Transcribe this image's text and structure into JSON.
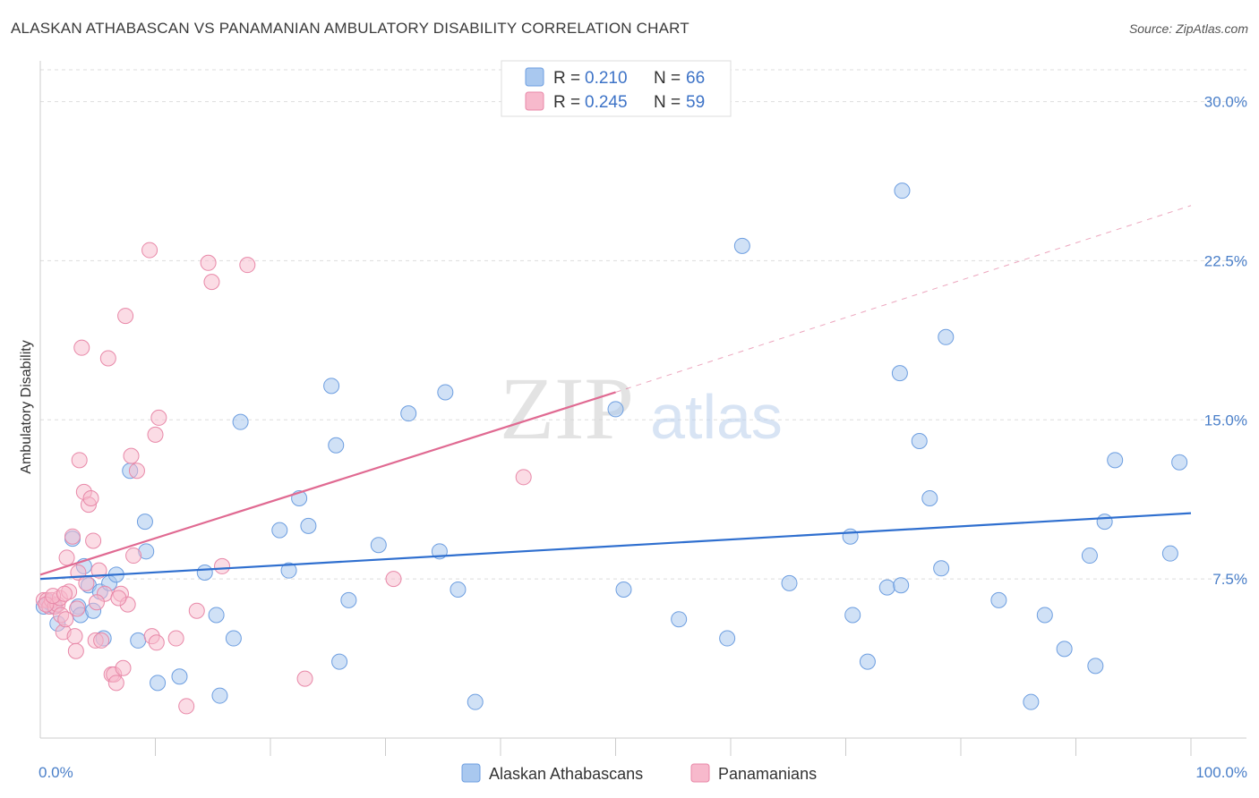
{
  "title": "ALASKAN ATHABASCAN VS PANAMANIAN AMBULATORY DISABILITY CORRELATION CHART",
  "source": "Source: ZipAtlas.com",
  "watermark": {
    "zip": "ZIP",
    "atlas": "atlas"
  },
  "legend": {
    "series1": {
      "r_label": "R =",
      "r_value": "0.210",
      "n_label": "N =",
      "n_value": "66"
    },
    "series2": {
      "r_label": "R =",
      "r_value": "0.245",
      "n_label": "N =",
      "n_value": "59"
    }
  },
  "bottom_legend": {
    "series1": "Alaskan Athabascans",
    "series2": "Panamanians"
  },
  "colors": {
    "blue_fill": "#a9c8ef",
    "blue_stroke": "#6d9ee0",
    "blue_line": "#2f6fcf",
    "pink_fill": "#f7b9cc",
    "pink_stroke": "#e888a8",
    "pink_line": "#e06a92",
    "tick_text": "#4a7fc9",
    "grid": "#dddddd"
  },
  "chart_data": {
    "type": "scatter",
    "title": "ALASKAN ATHABASCAN VS PANAMANIAN AMBULATORY DISABILITY CORRELATION CHART",
    "xlabel": "",
    "ylabel": "Ambulatory Disability",
    "xlim": [
      0,
      100
    ],
    "ylim": [
      0,
      31.5
    ],
    "x_tick_labels": [
      "0.0%",
      "100.0%"
    ],
    "y_ticks": [
      7.5,
      15.0,
      22.5,
      30.0
    ],
    "y_tick_labels": [
      "7.5%",
      "15.0%",
      "22.5%",
      "30.0%"
    ],
    "series": [
      {
        "name": "Alaskan Athabascans",
        "r": 0.21,
        "n": 66,
        "trend": {
          "x": [
            0,
            100
          ],
          "y": [
            7.5,
            10.6
          ],
          "dashed_extension": false
        },
        "points": [
          [
            0.3,
            6.2
          ],
          [
            0.8,
            6.4
          ],
          [
            1.2,
            6.2
          ],
          [
            1.5,
            5.4
          ],
          [
            2.8,
            9.4
          ],
          [
            3.3,
            6.2
          ],
          [
            3.5,
            5.8
          ],
          [
            3.8,
            8.1
          ],
          [
            4.2,
            7.2
          ],
          [
            4.6,
            6.0
          ],
          [
            5.2,
            6.9
          ],
          [
            5.5,
            4.7
          ],
          [
            6.0,
            7.3
          ],
          [
            6.6,
            7.7
          ],
          [
            7.8,
            12.6
          ],
          [
            8.5,
            4.6
          ],
          [
            9.1,
            10.2
          ],
          [
            9.2,
            8.8
          ],
          [
            10.2,
            2.6
          ],
          [
            12.1,
            2.9
          ],
          [
            14.3,
            7.8
          ],
          [
            15.3,
            5.8
          ],
          [
            15.6,
            2.0
          ],
          [
            16.8,
            4.7
          ],
          [
            17.4,
            14.9
          ],
          [
            20.8,
            9.8
          ],
          [
            21.6,
            7.9
          ],
          [
            22.5,
            11.3
          ],
          [
            23.3,
            10.0
          ],
          [
            25.3,
            16.6
          ],
          [
            25.7,
            13.8
          ],
          [
            26.0,
            3.6
          ],
          [
            26.8,
            6.5
          ],
          [
            29.4,
            9.1
          ],
          [
            32.0,
            15.3
          ],
          [
            34.7,
            8.8
          ],
          [
            35.2,
            16.3
          ],
          [
            36.3,
            7.0
          ],
          [
            37.8,
            1.7
          ],
          [
            50.0,
            15.5
          ],
          [
            50.7,
            7.0
          ],
          [
            55.5,
            5.6
          ],
          [
            59.7,
            4.7
          ],
          [
            61.0,
            23.2
          ],
          [
            65.1,
            7.3
          ],
          [
            70.4,
            9.5
          ],
          [
            70.6,
            5.8
          ],
          [
            71.9,
            3.6
          ],
          [
            73.6,
            7.1
          ],
          [
            74.7,
            17.2
          ],
          [
            74.8,
            7.2
          ],
          [
            74.9,
            25.8
          ],
          [
            76.4,
            14.0
          ],
          [
            77.3,
            11.3
          ],
          [
            78.3,
            8.0
          ],
          [
            78.7,
            18.9
          ],
          [
            83.3,
            6.5
          ],
          [
            86.1,
            1.7
          ],
          [
            87.3,
            5.8
          ],
          [
            89.0,
            4.2
          ],
          [
            91.2,
            8.6
          ],
          [
            91.7,
            3.4
          ],
          [
            92.5,
            10.2
          ],
          [
            93.4,
            13.1
          ],
          [
            98.2,
            8.7
          ],
          [
            99.0,
            13.0
          ]
        ]
      },
      {
        "name": "Panamanians",
        "r": 0.245,
        "n": 59,
        "trend": {
          "x": [
            0,
            50
          ],
          "y": [
            7.7,
            16.3
          ],
          "dash_x": [
            50,
            100
          ],
          "dash_y": [
            16.3,
            25.1
          ]
        },
        "points": [
          [
            0.3,
            6.5
          ],
          [
            0.6,
            6.5
          ],
          [
            0.8,
            6.2
          ],
          [
            1.0,
            6.5
          ],
          [
            1.3,
            6.2
          ],
          [
            1.5,
            6.3
          ],
          [
            1.7,
            6.6
          ],
          [
            1.8,
            5.8
          ],
          [
            2.0,
            5.0
          ],
          [
            2.2,
            5.6
          ],
          [
            2.3,
            8.5
          ],
          [
            2.5,
            6.9
          ],
          [
            2.8,
            9.5
          ],
          [
            3.0,
            4.8
          ],
          [
            3.1,
            4.1
          ],
          [
            3.3,
            7.8
          ],
          [
            3.4,
            13.1
          ],
          [
            3.6,
            18.4
          ],
          [
            3.8,
            11.6
          ],
          [
            4.0,
            7.3
          ],
          [
            4.2,
            11.0
          ],
          [
            4.4,
            11.3
          ],
          [
            4.6,
            9.3
          ],
          [
            4.8,
            4.6
          ],
          [
            5.1,
            7.9
          ],
          [
            5.3,
            4.6
          ],
          [
            5.6,
            6.8
          ],
          [
            5.9,
            17.9
          ],
          [
            6.2,
            3.0
          ],
          [
            6.4,
            3.0
          ],
          [
            6.6,
            2.6
          ],
          [
            7.0,
            6.8
          ],
          [
            7.2,
            3.3
          ],
          [
            7.4,
            19.9
          ],
          [
            7.6,
            6.3
          ],
          [
            7.9,
            13.3
          ],
          [
            8.1,
            8.6
          ],
          [
            8.4,
            12.6
          ],
          [
            9.5,
            23.0
          ],
          [
            9.7,
            4.8
          ],
          [
            10.0,
            14.3
          ],
          [
            10.1,
            4.5
          ],
          [
            10.3,
            15.1
          ],
          [
            11.8,
            4.7
          ],
          [
            12.7,
            1.5
          ],
          [
            13.6,
            6.0
          ],
          [
            14.6,
            22.4
          ],
          [
            14.9,
            21.5
          ],
          [
            15.8,
            8.1
          ],
          [
            18.0,
            22.3
          ],
          [
            23.0,
            2.8
          ],
          [
            30.7,
            7.5
          ],
          [
            42.0,
            12.3
          ],
          [
            0.5,
            6.3
          ],
          [
            1.1,
            6.7
          ],
          [
            2.1,
            6.8
          ],
          [
            3.2,
            6.1
          ],
          [
            4.9,
            6.4
          ],
          [
            6.8,
            6.6
          ]
        ]
      }
    ]
  }
}
